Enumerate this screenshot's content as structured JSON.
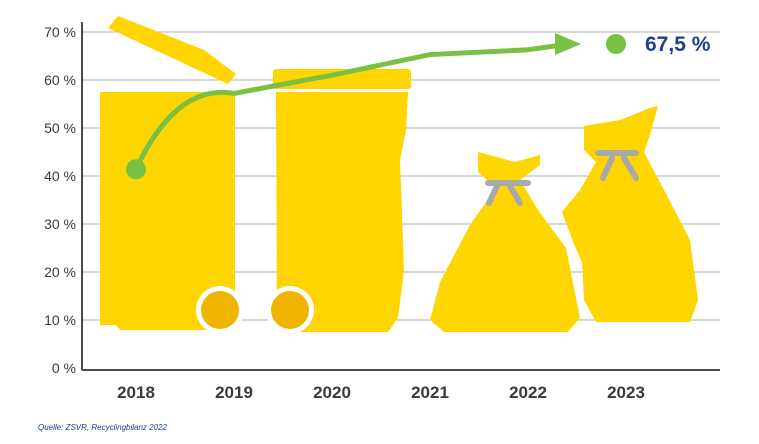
{
  "colors": {
    "accent_green": "#7ac143",
    "bin_yellow": "#ffd500",
    "wheel_orange": "#f0b400",
    "knot_grey": "#a9a9a9",
    "grid": "#b0b0b0",
    "axis": "#4a4a4a",
    "label_blue": "#1f3f8f"
  },
  "icons": [
    "yellow-bin-icon",
    "yellow-bin-icon",
    "yellow-bag-icon",
    "yellow-bag-icon"
  ],
  "chart_data": {
    "type": "line",
    "categories": [
      "2018",
      "2019",
      "2020",
      "2021",
      "2022",
      "2023"
    ],
    "values": [
      41.4,
      57.2,
      61,
      65.3,
      66.3,
      67.5
    ],
    "yticks": [
      "0 %",
      "10 %",
      "20 %",
      "30 %",
      "40 %",
      "50 %",
      "60 %",
      "70 %"
    ],
    "ylim": [
      0,
      70
    ],
    "grid": true,
    "final_value_label": "67,5 %"
  },
  "source": "Quelle: ZSVR, Recyclingbilanz 2022"
}
